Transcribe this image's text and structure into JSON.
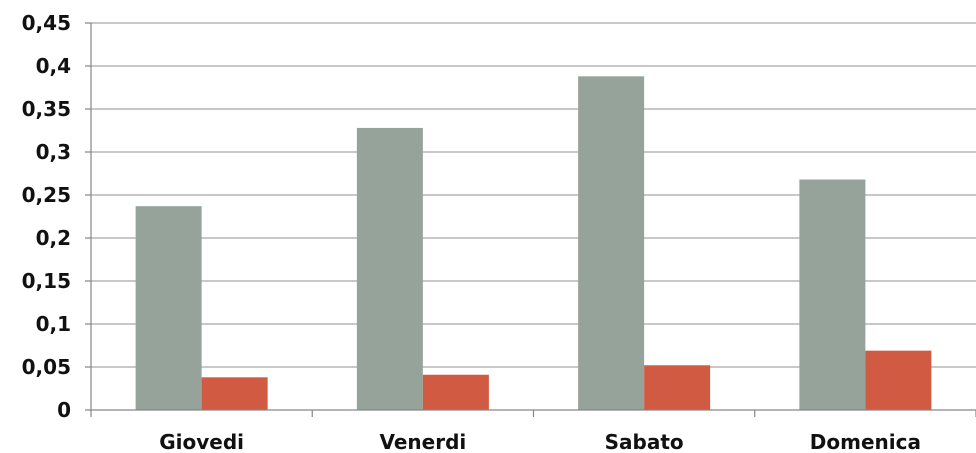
{
  "chart_data": {
    "type": "bar",
    "categories": [
      "Giovedi",
      "Venerdi",
      "Sabato",
      "Domenica"
    ],
    "series": [
      {
        "color": "#95a39a",
        "values": [
          0.237,
          0.328,
          0.388,
          0.268
        ]
      },
      {
        "color": "#d05a42",
        "values": [
          0.038,
          0.041,
          0.052,
          0.069
        ]
      }
    ],
    "yticks": [
      "0",
      "0,05",
      "0,1",
      "0,15",
      "0,2",
      "0,25",
      "0,3",
      "0,35",
      "0,4",
      "0,45"
    ],
    "ylim": [
      0,
      0.45
    ],
    "grid": true,
    "legend": "none",
    "gridline_color": "#a6a6a6",
    "axis_color": "#868686"
  }
}
